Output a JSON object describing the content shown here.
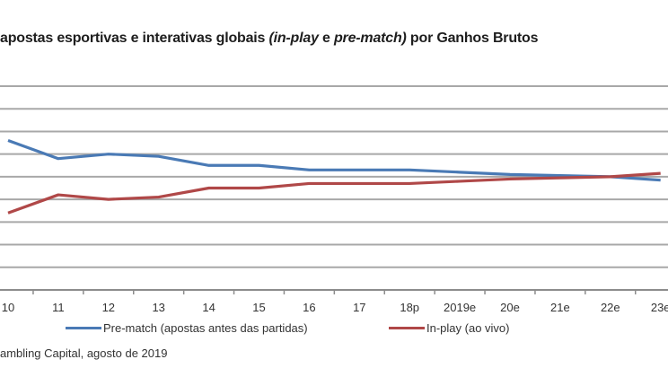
{
  "title": {
    "part1": "apostas esportivas e interativas globais ",
    "italic1": "(in-play",
    "part2": " e ",
    "italic2": "pre-match)",
    "part3": " por Ganhos Brutos"
  },
  "source": "ambling Capital, agosto de 2019",
  "chart_data": {
    "type": "line",
    "categories": [
      "10",
      "11",
      "12",
      "13",
      "14",
      "15",
      "16",
      "17",
      "18p",
      "2019e",
      "20e",
      "21e",
      "22e",
      "23e"
    ],
    "series": [
      {
        "name": "Pre-match (apostas antes das partidas)",
        "color": "#4a7ab5",
        "values": [
          66,
          58,
          60,
          59,
          55,
          55,
          53,
          53,
          53,
          52,
          51,
          50.5,
          50,
          48.5
        ]
      },
      {
        "name": "In-play (ao vivo)",
        "color": "#b04848",
        "values": [
          34,
          42,
          40,
          41,
          45,
          45,
          47,
          47,
          47,
          48,
          49,
          49.5,
          50,
          51.5
        ]
      }
    ],
    "ylim": [
      0,
      90
    ],
    "ystep": 10,
    "grid": true,
    "legend": "bottom",
    "ylabel": "",
    "xlabel": ""
  }
}
